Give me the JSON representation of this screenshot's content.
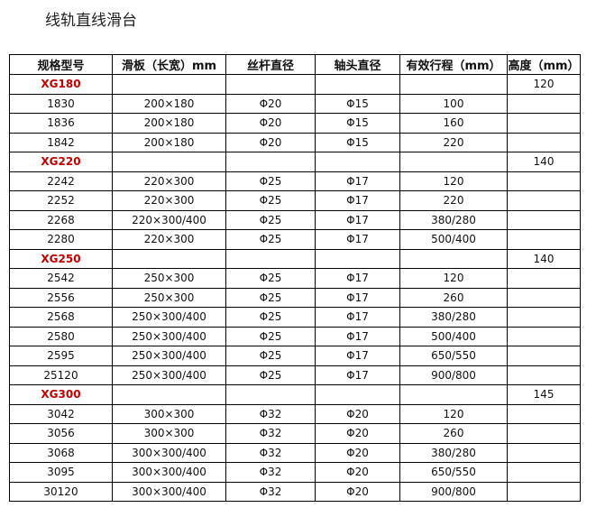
{
  "title": "线轨直线滑台",
  "table": {
    "headers": [
      "规格型号",
      "滑板（长宽）mm",
      "丝杆直径",
      "轴头直径",
      "有效行程（mm）",
      "高度（mm）"
    ],
    "accent_color": "#c00000",
    "rows": [
      {
        "group": true,
        "cells": [
          "XG180",
          "",
          "",
          "",
          "",
          "120"
        ]
      },
      {
        "cells": [
          "1830",
          "200×180",
          "Φ20",
          "Φ15",
          "100",
          ""
        ]
      },
      {
        "cells": [
          "1836",
          "200×180",
          "Φ20",
          "Φ15",
          "160",
          ""
        ]
      },
      {
        "cells": [
          "1842",
          "200×180",
          "Φ20",
          "Φ15",
          "220",
          ""
        ]
      },
      {
        "group": true,
        "cells": [
          "XG220",
          "",
          "",
          "",
          "",
          "140"
        ]
      },
      {
        "cells": [
          "2242",
          "220×300",
          "Φ25",
          "Φ17",
          "120",
          ""
        ]
      },
      {
        "cells": [
          "2252",
          "220×300",
          "Φ25",
          "Φ17",
          "220",
          ""
        ]
      },
      {
        "cells": [
          "2268",
          "220×300/400",
          "Φ25",
          "Φ17",
          "380/280",
          ""
        ]
      },
      {
        "cells": [
          "2280",
          "220×300",
          "Φ25",
          "Φ17",
          "500/400",
          ""
        ]
      },
      {
        "group": true,
        "cells": [
          "XG250",
          "",
          "",
          "",
          "",
          "140"
        ]
      },
      {
        "cells": [
          "2542",
          "250×300",
          "Φ25",
          "Φ17",
          "120",
          ""
        ]
      },
      {
        "cells": [
          "2556",
          "250×300",
          "Φ25",
          "Φ17",
          "260",
          ""
        ]
      },
      {
        "cells": [
          "2568",
          "250×300/400",
          "Φ25",
          "Φ17",
          "380/280",
          ""
        ]
      },
      {
        "cells": [
          "2580",
          "250×300/400",
          "Φ25",
          "Φ17",
          "500/400",
          ""
        ]
      },
      {
        "cells": [
          "2595",
          "250×300/400",
          "Φ25",
          "Φ17",
          "650/550",
          ""
        ]
      },
      {
        "cells": [
          "25120",
          "250×300/400",
          "Φ25",
          "Φ17",
          "900/800",
          ""
        ]
      },
      {
        "group": true,
        "cells": [
          "XG300",
          "",
          "",
          "",
          "",
          "145"
        ]
      },
      {
        "cells": [
          "3042",
          "300×300",
          "Φ32",
          "Φ20",
          "120",
          ""
        ]
      },
      {
        "cells": [
          "3056",
          "300×300",
          "Φ32",
          "Φ20",
          "260",
          ""
        ]
      },
      {
        "cells": [
          "3068",
          "300×300/400",
          "Φ32",
          "Φ20",
          "380/280",
          ""
        ]
      },
      {
        "cells": [
          "3095",
          "300×300/400",
          "Φ32",
          "Φ20",
          "650/550",
          ""
        ]
      },
      {
        "cells": [
          "30120",
          "300×300/400",
          "Φ32",
          "Φ20",
          "900/800",
          ""
        ]
      }
    ]
  }
}
